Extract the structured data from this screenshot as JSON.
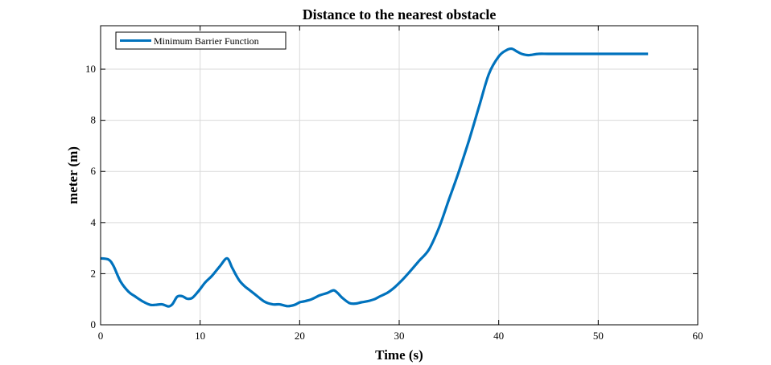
{
  "chart_data": {
    "type": "line",
    "title": "Distance to the nearest obstacle",
    "xlabel": "Time (s)",
    "ylabel": "meter (m)",
    "xlim": [
      0,
      60
    ],
    "ylim": [
      0,
      11.7
    ],
    "xticks": [
      0,
      10,
      20,
      30,
      40,
      50,
      60
    ],
    "yticks": [
      0,
      2,
      4,
      6,
      8,
      10
    ],
    "grid": true,
    "legend_position": "top-left",
    "colors": {
      "line": "#0072BD",
      "grid": "#d9d9d9",
      "axis": "#000000"
    },
    "series": [
      {
        "name": "Minimum Barrier Function",
        "x": [
          0,
          0.8,
          1.3,
          2,
          2.8,
          3.5,
          4.3,
          5,
          5.5,
          6.2,
          6.8,
          7.2,
          7.7,
          8.2,
          8.7,
          9.2,
          9.8,
          10.5,
          11.2,
          12,
          12.7,
          13.2,
          13.6,
          14,
          14.5,
          15,
          15.8,
          16.5,
          17.3,
          18,
          18.8,
          19.5,
          20,
          20.5,
          21.2,
          22,
          22.8,
          23.4,
          23.8,
          24.3,
          25,
          25.6,
          26.2,
          26.8,
          27.5,
          28,
          28.8,
          29.5,
          30.3,
          31,
          32,
          33,
          34,
          35,
          36,
          37,
          38,
          39,
          40,
          40.8,
          41.3,
          41.8,
          42.3,
          43,
          44,
          45,
          47,
          50,
          52,
          55
        ],
        "y": [
          2.6,
          2.55,
          2.3,
          1.7,
          1.3,
          1.1,
          0.9,
          0.78,
          0.78,
          0.8,
          0.72,
          0.8,
          1.1,
          1.12,
          1.02,
          1.05,
          1.3,
          1.65,
          1.92,
          2.3,
          2.6,
          2.25,
          1.95,
          1.7,
          1.5,
          1.35,
          1.1,
          0.9,
          0.8,
          0.8,
          0.73,
          0.78,
          0.88,
          0.92,
          1.0,
          1.15,
          1.25,
          1.35,
          1.25,
          1.05,
          0.85,
          0.83,
          0.88,
          0.92,
          1.0,
          1.1,
          1.25,
          1.45,
          1.75,
          2.05,
          2.5,
          2.95,
          3.8,
          4.9,
          6.0,
          7.2,
          8.5,
          9.8,
          10.5,
          10.75,
          10.8,
          10.7,
          10.6,
          10.55,
          10.6,
          10.6,
          10.6,
          10.6,
          10.6,
          10.6
        ]
      }
    ]
  }
}
